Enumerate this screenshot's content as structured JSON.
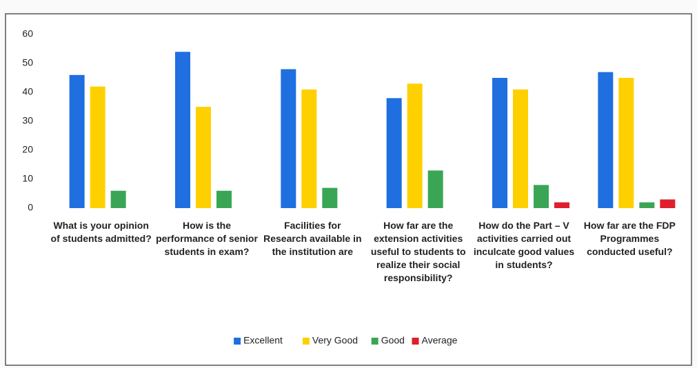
{
  "chart_data": {
    "type": "bar",
    "categories": [
      "What is your opinion of students admitted?",
      "How is the performance of senior students in exam?",
      "Facilities for Research available in the institution are",
      "How far are the extension activities useful to students to realize their social responsibility?",
      "How do the Part – V activities carried out inculcate good values in students?",
      "How far are the FDP Programmes conducted useful?"
    ],
    "series": [
      {
        "name": "Excellent",
        "color": "#1f6fe0",
        "values": [
          46,
          54,
          48,
          38,
          45,
          47
        ]
      },
      {
        "name": "Very Good",
        "color": "#ffd000",
        "values": [
          42,
          35,
          41,
          43,
          41,
          45
        ]
      },
      {
        "name": "Good",
        "color": "#3aa655",
        "values": [
          6,
          6,
          7,
          13,
          8,
          2
        ]
      },
      {
        "name": "Average",
        "color": "#e01f2c",
        "values": [
          0,
          0,
          0,
          0,
          2,
          3
        ]
      }
    ],
    "ylim": [
      0,
      60
    ],
    "yticks": [
      0,
      10,
      20,
      30,
      40,
      50,
      60
    ],
    "grid": false,
    "legend": "bottom"
  }
}
